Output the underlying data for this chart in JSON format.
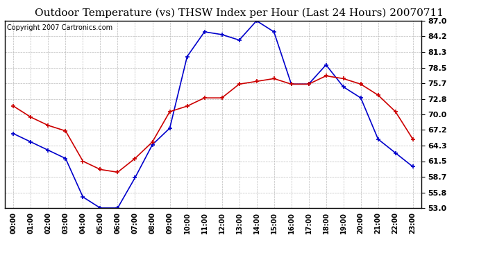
{
  "title": "Outdoor Temperature (vs) THSW Index per Hour (Last 24 Hours) 20070711",
  "copyright": "Copyright 2007 Cartronics.com",
  "x_labels": [
    "00:00",
    "01:00",
    "02:00",
    "03:00",
    "04:00",
    "05:00",
    "06:00",
    "07:00",
    "08:00",
    "09:00",
    "10:00",
    "11:00",
    "12:00",
    "13:00",
    "14:00",
    "15:00",
    "16:00",
    "17:00",
    "18:00",
    "19:00",
    "20:00",
    "21:00",
    "22:00",
    "23:00"
  ],
  "thsw_values": [
    66.5,
    65.0,
    63.5,
    62.0,
    55.0,
    53.0,
    53.0,
    58.5,
    64.5,
    67.5,
    80.5,
    85.0,
    84.5,
    83.5,
    87.0,
    85.0,
    75.5,
    75.5,
    79.0,
    75.0,
    73.0,
    65.5,
    63.0,
    60.5
  ],
  "temp_values": [
    71.5,
    69.5,
    68.0,
    67.0,
    61.5,
    60.0,
    59.5,
    62.0,
    65.0,
    70.5,
    71.5,
    73.0,
    73.0,
    75.5,
    76.0,
    76.5,
    75.5,
    75.5,
    77.0,
    76.5,
    75.5,
    73.5,
    70.5,
    65.5
  ],
  "thsw_color": "#0000cc",
  "temp_color": "#cc0000",
  "ylim_min": 53.0,
  "ylim_max": 87.0,
  "yticks": [
    53.0,
    55.8,
    58.7,
    61.5,
    64.3,
    67.2,
    70.0,
    72.8,
    75.7,
    78.5,
    81.3,
    84.2,
    87.0
  ],
  "bg_color": "#ffffff",
  "grid_color": "#aaaaaa",
  "title_fontsize": 11,
  "copyright_fontsize": 7,
  "marker": "+",
  "marker_size": 5,
  "line_width": 1.2
}
